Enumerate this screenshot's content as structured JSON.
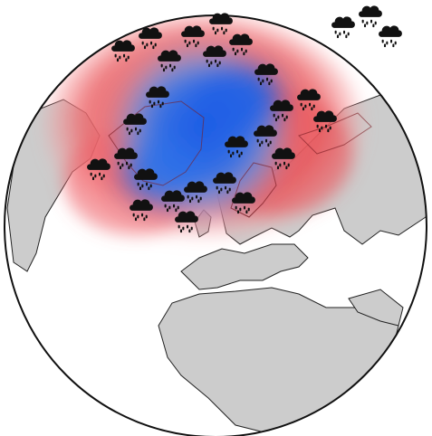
{
  "map": {
    "projection": "orthographic",
    "colors": {
      "ocean": "#ffffff",
      "land": "#cccccc",
      "coast": "#222222",
      "globe_outline": "#111111",
      "warm_anomaly": "#e8303c",
      "cold_anomaly": "#1f6fe8",
      "cloud": "#111111"
    },
    "anomaly_regions": [
      {
        "type": "warm",
        "color": "red"
      },
      {
        "type": "cold",
        "color": "blue"
      }
    ],
    "legend_icons": {
      "icon": "rain-cloud-icon",
      "count": 3
    },
    "weather_symbol": {
      "icon": "rain-cloud-icon",
      "meaning": "precipitation"
    }
  }
}
